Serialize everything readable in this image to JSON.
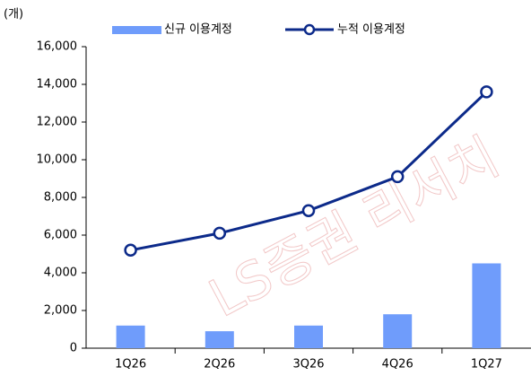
{
  "chart_data": {
    "type": "bar",
    "unit_label": "(개)",
    "watermark": "LS증권 리서치",
    "categories": [
      "1Q26",
      "2Q26",
      "3Q26",
      "4Q26",
      "1Q27"
    ],
    "series": [
      {
        "name": "신규 이용계정",
        "type": "bar",
        "color": "#6f9cfb",
        "values": [
          1200,
          900,
          1200,
          1800,
          4500
        ]
      },
      {
        "name": "누적 이용계정",
        "type": "line",
        "color": "#0c2a8a",
        "values": [
          5200,
          6100,
          7300,
          9100,
          13600
        ]
      }
    ],
    "ylim": [
      0,
      16000
    ],
    "yticks": [
      0,
      {
        "value": 2000,
        "label": "2,000"
      },
      {
        "value": 4000,
        "label": "4,000"
      },
      {
        "value": 6000,
        "label": "6,000"
      },
      {
        "value": 8000,
        "label": "8,000"
      },
      {
        "value": 10000,
        "label": "10,000"
      },
      {
        "value": 12000,
        "label": "12,000"
      },
      {
        "value": 14000,
        "label": "14,000"
      },
      {
        "value": 16000,
        "label": "16,000"
      }
    ],
    "grid": false,
    "legend": "top"
  }
}
